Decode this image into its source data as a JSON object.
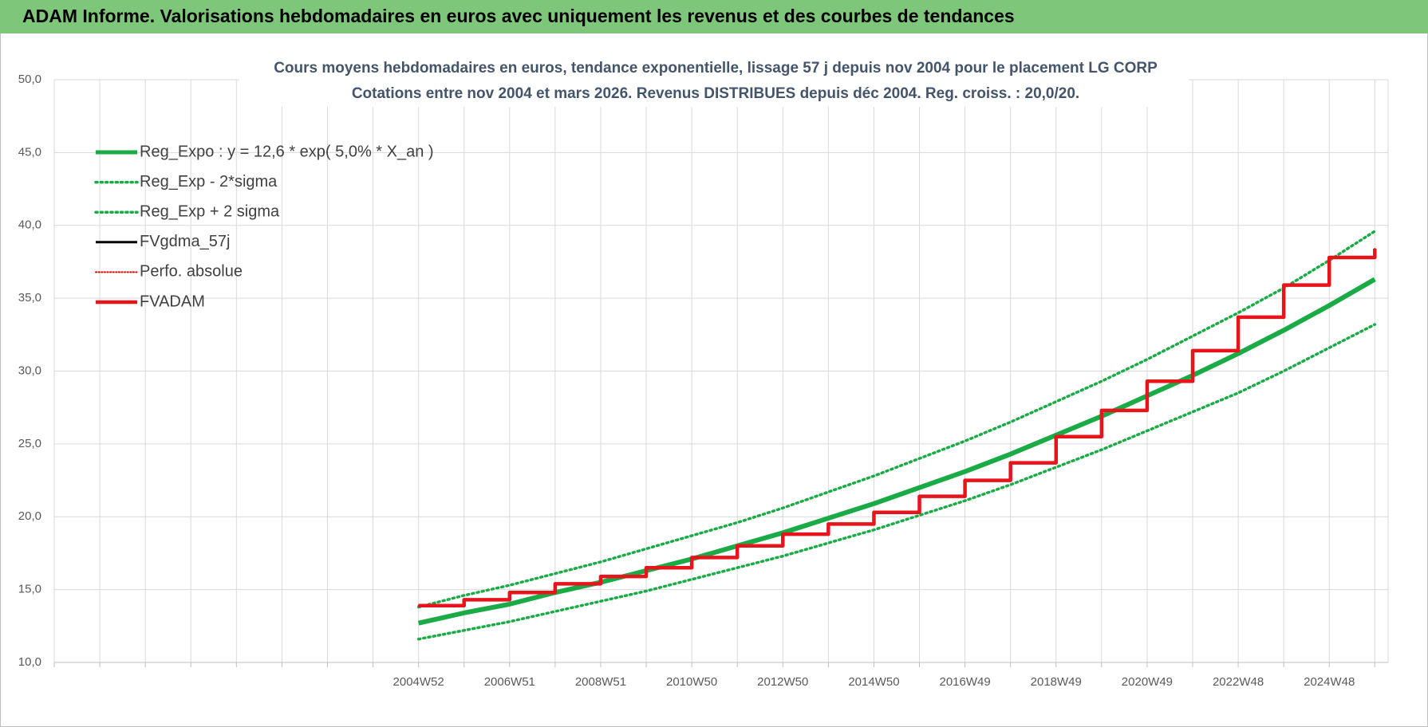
{
  "page_title": "ADAM Informe. Valorisations hebdomadaires en euros avec uniquement les revenus et des courbes de tendances",
  "chart_data": {
    "type": "line",
    "title": "Cours moyens hebdomadaires en euros, tendance exponentielle, lissage 57 j depuis nov 2004  pour le placement LG CORP",
    "subtitle": "Cotations entre nov 2004 et mars 2026. Revenus DISTRIBUES depuis déc 2004.  Reg. croiss. : 20,0/20.",
    "categories": [
      null,
      null,
      null,
      null,
      null,
      null,
      null,
      null,
      "2004W52",
      null,
      "2006W51",
      null,
      "2008W51",
      null,
      "2010W50",
      null,
      "2012W50",
      null,
      "2014W50",
      null,
      "2016W49",
      null,
      "2018W49",
      null,
      "2020W49",
      null,
      "2022W48",
      null,
      "2024W48",
      null
    ],
    "ylim": [
      10,
      50
    ],
    "yticks": [
      {
        "value": 10,
        "label": "10,0"
      },
      {
        "value": 15,
        "label": "15,0"
      },
      {
        "value": 20,
        "label": "20,0"
      },
      {
        "value": 25,
        "label": "25,0"
      },
      {
        "value": 30,
        "label": "30,0"
      },
      {
        "value": 35,
        "label": "35,0"
      },
      {
        "value": 40,
        "label": "40,0"
      },
      {
        "value": 45,
        "label": "45,0"
      },
      {
        "value": 50,
        "label": "50,0"
      }
    ],
    "grid": true,
    "legend": "upper left",
    "series": [
      {
        "name": "Reg_Expo : y = 12,6 * exp( 5,0% *  X_an )",
        "color": "#1aab47",
        "style": "solid",
        "linewidth": 6,
        "step": false,
        "values": [
          null,
          null,
          null,
          null,
          null,
          null,
          null,
          null,
          12.7,
          13.4,
          14.0,
          14.8,
          15.5,
          16.3,
          17.1,
          18.0,
          18.9,
          19.9,
          20.9,
          22.0,
          23.1,
          24.3,
          25.6,
          26.9,
          28.3,
          29.7,
          31.2,
          32.8,
          34.5,
          36.3
        ]
      },
      {
        "name": "Reg_Exp - 2*sigma",
        "color": "#1aab47",
        "style": "dotted",
        "linewidth": 3.5,
        "step": false,
        "values": [
          null,
          null,
          null,
          null,
          null,
          null,
          null,
          null,
          11.6,
          12.2,
          12.8,
          13.5,
          14.2,
          14.9,
          15.7,
          16.5,
          17.3,
          18.2,
          19.1,
          20.1,
          21.1,
          22.2,
          23.4,
          24.6,
          25.9,
          27.2,
          28.5,
          30.0,
          31.6,
          33.2
        ]
      },
      {
        "name": "Reg_Exp + 2 sigma",
        "color": "#1aab47",
        "style": "dotted",
        "linewidth": 3.5,
        "step": false,
        "values": [
          null,
          null,
          null,
          null,
          null,
          null,
          null,
          null,
          13.8,
          14.6,
          15.3,
          16.1,
          16.9,
          17.8,
          18.7,
          19.6,
          20.6,
          21.7,
          22.8,
          24.0,
          25.2,
          26.5,
          27.9,
          29.3,
          30.8,
          32.4,
          34.0,
          35.7,
          37.6,
          39.6
        ]
      },
      {
        "name": "FVgdma_57j",
        "color": "#000000",
        "style": "solid",
        "linewidth": 3,
        "step": true,
        "values": [
          null,
          null,
          null,
          null,
          null,
          null,
          null,
          null,
          13.9,
          14.3,
          14.8,
          15.4,
          15.9,
          16.5,
          17.2,
          18.0,
          18.8,
          19.5,
          20.3,
          21.4,
          22.5,
          23.7,
          25.5,
          27.3,
          29.3,
          31.4,
          33.7,
          35.9,
          37.8,
          38.4
        ]
      },
      {
        "name": "Perfo. absolue",
        "color": "#e00000",
        "style": "dotted",
        "linewidth": 2,
        "step": true,
        "values": [
          null,
          null,
          null,
          null,
          null,
          null,
          null,
          null,
          13.9,
          14.3,
          14.8,
          15.4,
          15.9,
          16.5,
          17.2,
          18.0,
          18.8,
          19.5,
          20.3,
          21.4,
          22.5,
          23.7,
          25.5,
          27.3,
          29.3,
          31.4,
          33.7,
          35.9,
          37.8,
          38.4
        ]
      },
      {
        "name": "FVADAM",
        "color": "#e8141b",
        "style": "solid",
        "linewidth": 4.5,
        "step": true,
        "values": [
          null,
          null,
          null,
          null,
          null,
          null,
          null,
          null,
          13.9,
          14.3,
          14.8,
          15.4,
          15.9,
          16.5,
          17.2,
          18.0,
          18.8,
          19.5,
          20.3,
          21.4,
          22.5,
          23.7,
          25.5,
          27.3,
          29.3,
          31.4,
          33.7,
          35.9,
          37.8,
          38.4
        ]
      }
    ]
  }
}
